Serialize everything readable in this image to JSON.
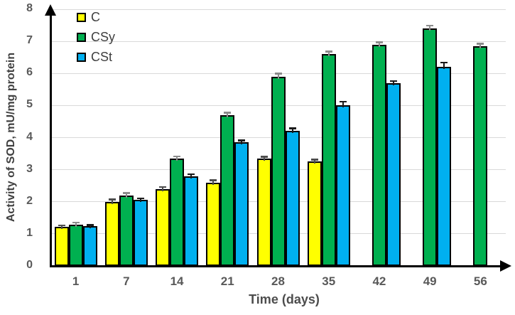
{
  "figure": {
    "background": "#ffffff"
  },
  "chart_data": {
    "type": "bar",
    "title": "",
    "xlabel": "Time (days)",
    "ylabel": "Activity of SOD, mU/mg protein",
    "categories": [
      "1",
      "7",
      "14",
      "21",
      "28",
      "35",
      "42",
      "49",
      "56"
    ],
    "ylim": [
      0,
      8
    ],
    "yticks": [
      0,
      1,
      2,
      3,
      4,
      5,
      6,
      7,
      8
    ],
    "grid": "horizontal",
    "legend_position": "top-left-inside",
    "has_error_bars": true,
    "axis_arrows": true,
    "series": [
      {
        "name": "C",
        "color": "#FFFF00",
        "error_color": "#4d4d4d",
        "values": [
          1.22,
          2.0,
          2.4,
          2.6,
          3.35,
          3.25,
          null,
          null,
          null
        ],
        "errors": [
          0.03,
          0.05,
          0.04,
          0.05,
          0.04,
          0.05,
          null,
          null,
          null
        ]
      },
      {
        "name": "CSy",
        "color": "#00B050",
        "error_color": "#8c8c8c",
        "values": [
          1.28,
          2.2,
          3.35,
          4.7,
          5.9,
          6.6,
          6.9,
          7.4,
          6.85
        ],
        "errors": [
          0.06,
          0.06,
          0.05,
          0.06,
          0.08,
          0.06,
          0.05,
          0.07,
          0.06
        ]
      },
      {
        "name": "CSt",
        "color": "#00B0F0",
        "error_color": "#1a1a1a",
        "values": [
          1.23,
          2.05,
          2.8,
          3.85,
          4.2,
          5.0,
          5.7,
          6.2,
          null
        ],
        "errors": [
          0.03,
          0.04,
          0.04,
          0.05,
          0.07,
          0.1,
          0.05,
          0.12,
          null
        ]
      }
    ],
    "styles": {
      "gridline": "#d9d9d9",
      "axis": "#000000",
      "bar_border": "#000000",
      "tick_label": "#595959",
      "axis_title": "#404040",
      "legend_text": "#3f3f3f"
    }
  }
}
